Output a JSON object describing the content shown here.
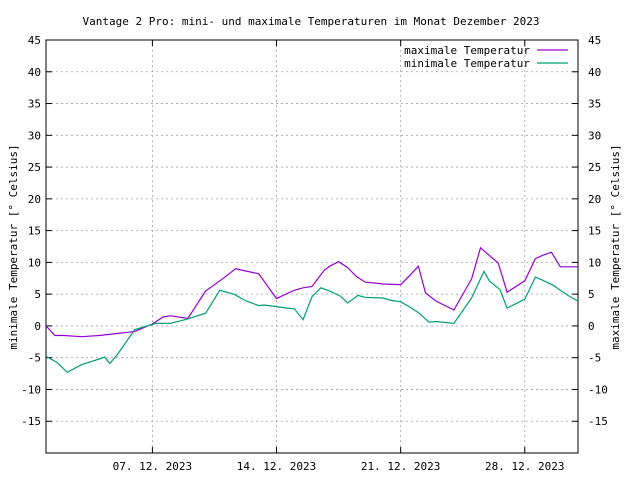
{
  "chart_data": {
    "type": "line",
    "title": "Vantage 2 Pro: mini- und maximale Temperaturen im Monat Dezember 2023",
    "ylabel_left": "minimale Temperatur [° Celsius]",
    "ylabel_right": "maximale Temperatur [° Celsius]",
    "ylim": [
      -20,
      45
    ],
    "yticks": [
      -15,
      -10,
      -5,
      0,
      5,
      10,
      15,
      20,
      25,
      30,
      35,
      40,
      45
    ],
    "xlim": [
      1,
      31
    ],
    "xticks": [
      {
        "day": 7,
        "label": "07. 12. 2023"
      },
      {
        "day": 14,
        "label": "14. 12. 2023"
      },
      {
        "day": 21,
        "label": "21. 12. 2023"
      },
      {
        "day": 28,
        "label": "28. 12. 2023"
      }
    ],
    "grid": true,
    "legend_position": "top-right",
    "series": [
      {
        "name": "maximale Temperatur",
        "color": "#9400d3",
        "x": [
          1,
          1.5,
          2,
          3,
          4,
          5,
          6,
          7,
          7.6,
          8,
          9,
          10,
          11,
          11.7,
          12,
          13,
          14,
          14.6,
          15,
          15.5,
          16,
          16.7,
          17,
          17.5,
          18,
          18.5,
          19,
          20,
          21,
          21.5,
          22,
          22.4,
          23,
          24,
          25,
          25.5,
          26,
          26.5,
          27,
          28,
          28.6,
          29,
          29.5,
          30,
          30.5,
          31
        ],
        "y": [
          0,
          -1.5,
          -1.5,
          -1.7,
          -1.5,
          -1.2,
          -0.9,
          0.3,
          1.4,
          1.6,
          1.2,
          5.5,
          7.5,
          9,
          8.8,
          8.2,
          4.3,
          5.1,
          5.6,
          6,
          6.2,
          8.8,
          9.4,
          10.1,
          9.2,
          7.8,
          6.9,
          6.6,
          6.5,
          7.9,
          9.4,
          5.2,
          3.9,
          2.5,
          7.4,
          12.3,
          11.1,
          9.9,
          5.3,
          7.1,
          10.6,
          11.1,
          11.6,
          9.3,
          9.3,
          9.3
        ]
      },
      {
        "name": "minimale Temperatur",
        "color": "#009e73",
        "x": [
          1,
          1.6,
          2.2,
          3,
          4,
          4.3,
          4.6,
          5,
          6,
          7.2,
          8,
          9,
          10,
          10.8,
          11.6,
          12.3,
          13,
          13.3,
          14.6,
          15,
          15.5,
          16,
          16.5,
          17,
          17.6,
          18,
          18.6,
          19,
          20,
          20.5,
          21,
          21.5,
          22,
          22.6,
          23,
          24,
          25,
          25.7,
          26,
          26.6,
          27,
          27.5,
          28,
          28.6,
          29,
          29.6,
          30,
          30.5,
          31
        ],
        "y": [
          -4.8,
          -5.7,
          -7.3,
          -6.1,
          -5.2,
          -4.9,
          -5.9,
          -4.6,
          -0.6,
          0.4,
          0.4,
          1.1,
          2,
          5.6,
          5,
          3.9,
          3.2,
          3.3,
          2.8,
          2.7,
          1,
          4.6,
          6,
          5.5,
          4.7,
          3.6,
          4.8,
          4.5,
          4.4,
          4,
          3.8,
          3,
          2.1,
          0.6,
          0.7,
          0.4,
          4.4,
          8.6,
          7.1,
          5.7,
          2.8,
          3.5,
          4.2,
          7.7,
          7.2,
          6.4,
          5.6,
          4.7,
          3.9
        ]
      }
    ]
  }
}
